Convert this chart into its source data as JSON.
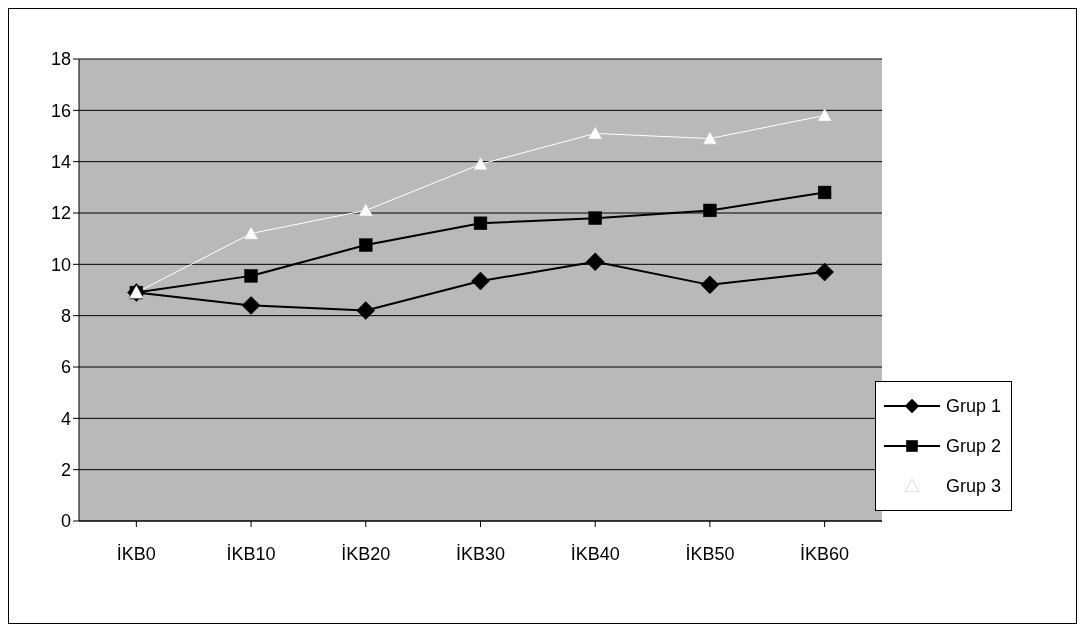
{
  "chart_data": {
    "type": "line",
    "categories": [
      "İKB0",
      "İKB10",
      "İKB20",
      "İKB30",
      "İKB40",
      "İKB50",
      "İKB60"
    ],
    "series": [
      {
        "name": "Grup 1",
        "color": "#000000",
        "marker": "diamond",
        "values": [
          8.9,
          8.4,
          8.2,
          9.35,
          10.1,
          9.2,
          9.7
        ]
      },
      {
        "name": "Grup 2",
        "color": "#000000",
        "marker": "square",
        "values": [
          8.9,
          9.55,
          10.75,
          11.6,
          11.8,
          12.1,
          12.8
        ]
      },
      {
        "name": "Grup 3",
        "color": "#ffffff",
        "marker": "triangle",
        "values": [
          8.9,
          11.2,
          12.1,
          13.9,
          15.1,
          14.9,
          15.8
        ]
      }
    ],
    "ylim": [
      0,
      18
    ],
    "yticks": [
      0,
      2,
      4,
      6,
      8,
      10,
      12,
      14,
      16,
      18
    ],
    "grid": "y",
    "legend": "bottom right",
    "line_style": "solid"
  }
}
